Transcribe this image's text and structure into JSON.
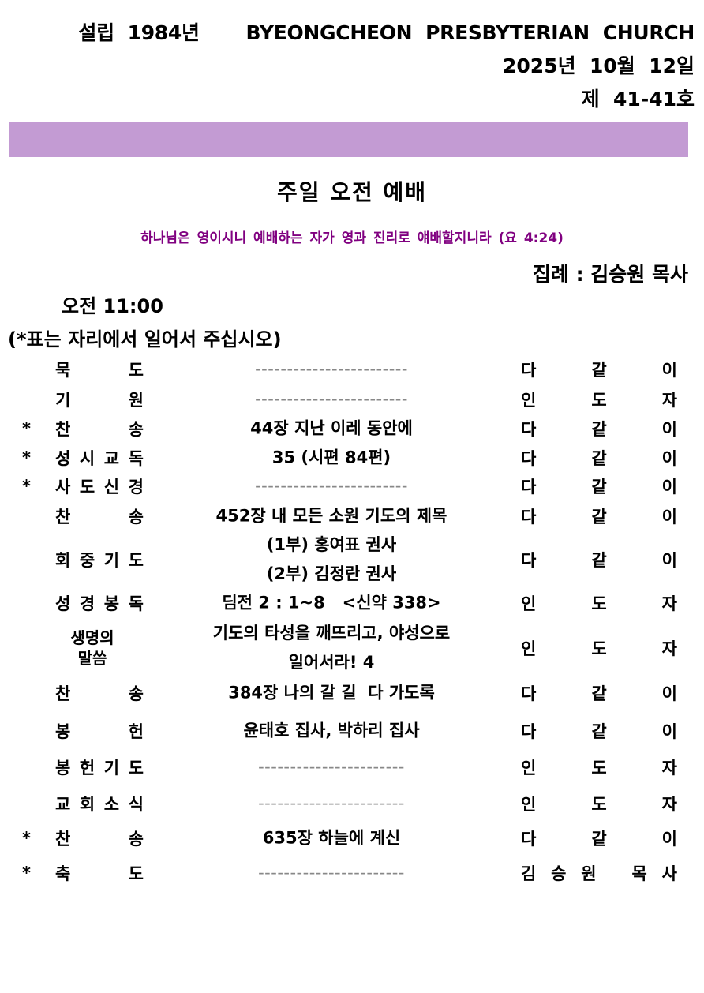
{
  "header": {
    "established": "설립  1984년       BYEONGCHEON  PRESBYTERIAN  CHURCH",
    "date": "2025년  10월  12일",
    "issue": "제  41-41호"
  },
  "colors": {
    "band": "#c39bd3",
    "verse": "#800080"
  },
  "title": "주일 오전 예배",
  "verse": "하나님은 영이시니 예배하는 자가 영과 진리로 얘배할지니라 (요 4:24)",
  "presider": "집례 : 김승원 목사",
  "time": "오전 11:00",
  "note": "(*표는 자리에서 일어서 주십시오)",
  "rows": [
    {
      "star": "",
      "label": "묵도",
      "content": [
        "------------------------"
      ],
      "resp": "다같이"
    },
    {
      "star": "",
      "label": "기원",
      "content": [
        "------------------------"
      ],
      "resp": "인도자"
    },
    {
      "star": "*",
      "label": "찬송",
      "content": [
        "44장 지난 이레 동안에"
      ],
      "resp": "다같이"
    },
    {
      "star": "*",
      "label": "성시교독",
      "content": [
        "35 (시편 84편)"
      ],
      "resp": "다같이"
    },
    {
      "star": "*",
      "label": "사도신경",
      "content": [
        "------------------------"
      ],
      "resp": "다같이"
    },
    {
      "star": "",
      "label": "찬송",
      "content": [
        "452장 내 모든 소원 기도의 제목"
      ],
      "resp": "다같이"
    },
    {
      "star": "",
      "label": "회중기도",
      "content": [
        "(1부) 홍여표 권사",
        "(2부) 김정란 권사"
      ],
      "resp": "다같이"
    },
    {
      "star": "",
      "label": "성경봉독",
      "content": [
        "딤전 2 : 1~8   <신약 338>"
      ],
      "resp": "인도자"
    },
    {
      "star": "",
      "label": "생명의\n말씀",
      "content": [
        "기도의 타성을 깨뜨리고, 야성으로",
        "일어서라! 4"
      ],
      "resp": "인도자"
    },
    {
      "star": "",
      "label": "찬송",
      "content": [
        "384장 나의 갈 길  다 가도록"
      ],
      "resp": "다같이"
    },
    {
      "star": "",
      "label": "봉헌",
      "content": [
        "윤태호 집사, 박하리 집사"
      ],
      "resp": "다같이"
    },
    {
      "star": "",
      "label": "봉헌기도",
      "content": [
        "-----------------------"
      ],
      "resp": "인도자"
    },
    {
      "star": "",
      "label": "교회소식",
      "content": [
        "-----------------------"
      ],
      "resp": "인도자"
    },
    {
      "star": "*",
      "label": "찬송",
      "content": [
        "635장 하늘에 계신"
      ],
      "resp": "다같이"
    },
    {
      "star": "*",
      "label": "축도",
      "content": [
        "-----------------------"
      ],
      "resp": "김승원 목사"
    }
  ]
}
